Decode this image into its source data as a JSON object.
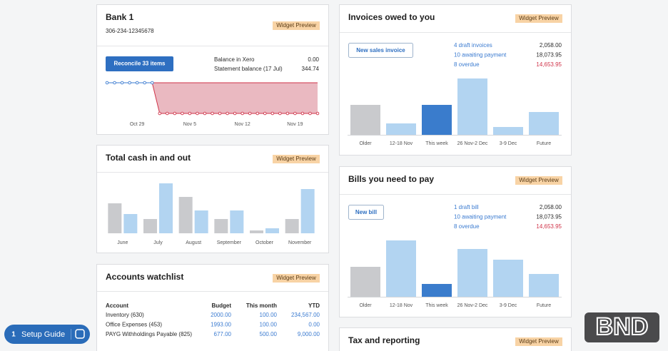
{
  "bank": {
    "title": "Bank 1",
    "account": "306-234-12345678",
    "badge": "Widget Preview",
    "button": "Reconcile 33 items",
    "balance_label": "Balance in Xero",
    "balance": "0.00",
    "statement_label": "Statement balance (17 Jul)",
    "statement": "344.74",
    "chart": {
      "type": "line",
      "categories": [
        null,
        null,
        null,
        null,
        "Oct 29",
        null,
        null,
        null,
        null,
        null,
        null,
        "Nov 5",
        null,
        null,
        null,
        null,
        null,
        null,
        "Nov 12",
        null,
        null,
        null,
        null,
        null,
        null,
        "Nov 19",
        null,
        null,
        null
      ],
      "values": [
        344.74,
        344.74,
        344.74,
        344.74,
        344.74,
        344.74,
        344.74,
        0,
        0,
        0,
        0,
        0,
        0,
        0,
        0,
        0,
        0,
        0,
        0,
        0,
        0,
        0,
        0,
        0,
        0,
        0,
        0,
        0,
        0
      ],
      "color": "#3b7bd0",
      "drop_color": "#d0344a",
      "area_color": "#e9b5be",
      "ylim": [
        0,
        344.74
      ]
    }
  },
  "cash": {
    "title": "Total cash in and out",
    "badge": "Widget Preview",
    "chart": {
      "type": "bar",
      "categories": [
        "June",
        "July",
        "August",
        "September",
        "October",
        "November"
      ],
      "series": [
        {
          "color": "#c9cacd",
          "values": [
            42,
            20,
            51,
            20,
            4,
            20
          ]
        },
        {
          "color": "#b2d4f1",
          "values": [
            27,
            70,
            32,
            32,
            7,
            62
          ]
        }
      ],
      "ylim": [
        0,
        80
      ]
    }
  },
  "watchlist": {
    "title": "Accounts watchlist",
    "badge": "Widget Preview",
    "table": {
      "header": [
        "Account",
        "Budget",
        "This month",
        "YTD"
      ],
      "rows": [
        [
          "Inventory (630)",
          "2000.00",
          "100.00",
          "234,567.00"
        ],
        [
          "Office Expenses (453)",
          "1993.00",
          "100.00",
          "0.00"
        ],
        [
          "PAYG Withholdings Payable (825)",
          "677.00",
          "500.00",
          "9,000.00"
        ]
      ]
    }
  },
  "invoices": {
    "title": "Invoices owed to you",
    "badge": "Widget Preview",
    "button": "New sales invoice",
    "summary": [
      {
        "label": "4 draft invoices",
        "amount": "2,058.00"
      },
      {
        "label": "10 awaiting payment",
        "amount": "18,073.95"
      },
      {
        "label": "8 overdue",
        "amount": "14,653.95"
      }
    ],
    "chart": {
      "type": "bar",
      "categories": [
        "Older",
        "12-18 Nov",
        "This week",
        "26 Nov-2 Dec",
        "3-9 Dec",
        "Future"
      ],
      "values": [
        42,
        16,
        42,
        79,
        11,
        32
      ],
      "colors": [
        "#c9cacd",
        "#b2d4f1",
        "#3a7ccc",
        "#b2d4f1",
        "#b2d4f1",
        "#b2d4f1"
      ],
      "ylim": [
        0,
        80
      ]
    }
  },
  "bills": {
    "title": "Bills you need to pay",
    "badge": "Widget Preview",
    "button": "New bill",
    "summary": [
      {
        "label": "1 draft bill",
        "amount": "2,058.00"
      },
      {
        "label": "10 awaiting payment",
        "amount": "18,073.95"
      },
      {
        "label": "8 overdue",
        "amount": "14,653.95"
      }
    ],
    "chart": {
      "type": "bar",
      "categories": [
        "Older",
        "12-18 Nov",
        "This week",
        "26 Nov-2 Dec",
        "3-9 Dec",
        "Future"
      ],
      "values": [
        42,
        79,
        18,
        67,
        52,
        32
      ],
      "colors": [
        "#c9cacd",
        "#b2d4f1",
        "#3a7ccc",
        "#b2d4f1",
        "#b2d4f1",
        "#b2d4f1"
      ],
      "ylim": [
        0,
        80
      ]
    }
  },
  "tax": {
    "title": "Tax and reporting",
    "badge": "Widget Preview"
  },
  "setup": {
    "count": "1",
    "label": "Setup Guide"
  },
  "logo": "BND"
}
